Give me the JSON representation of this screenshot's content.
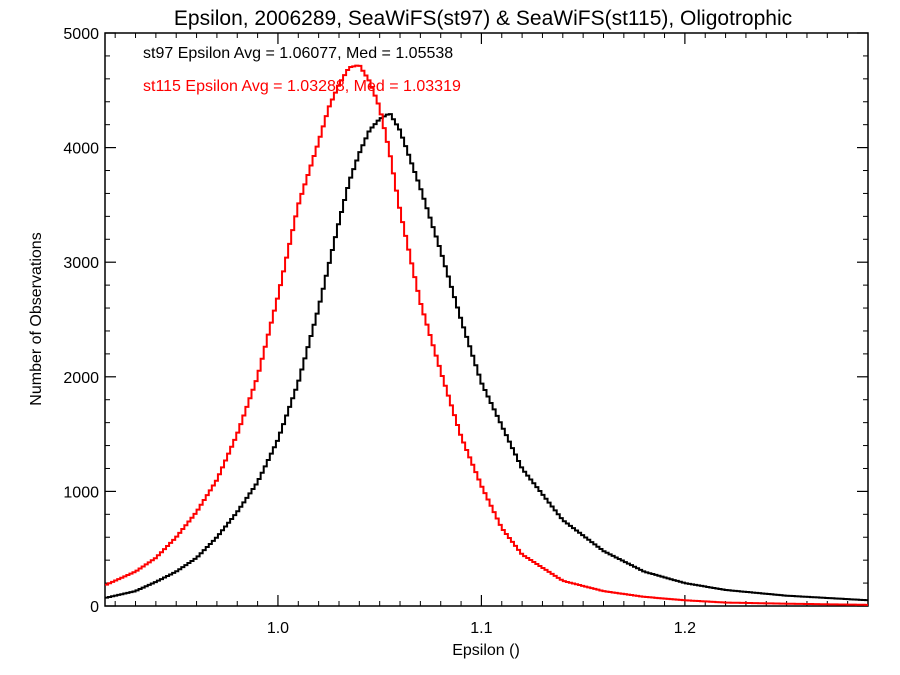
{
  "chart_data": {
    "type": "line",
    "title": "Epsilon, 2006289, SeaWiFS(st97) & SeaWiFS(st115), Oligotrophic",
    "xlabel": "Epsilon ()",
    "ylabel": "Number of Observations",
    "xlim": [
      0.915,
      1.29
    ],
    "ylim": [
      0,
      5000
    ],
    "x_ticks": [
      "1.0",
      "1.1",
      "1.2"
    ],
    "y_ticks": [
      "0",
      "1000",
      "2000",
      "3000",
      "4000",
      "5000"
    ],
    "grid": false,
    "line_style": "histogram-step",
    "annotations": [
      {
        "text": "st97 Epsilon Avg = 1.06077, Med = 1.05538",
        "color": "#000000"
      },
      {
        "text": "st115 Epsilon Avg = 1.03288, Med = 1.03319",
        "color": "#ff0000"
      }
    ],
    "series": [
      {
        "color": "#000000",
        "x": [
          0.915,
          0.93,
          0.94,
          0.95,
          0.96,
          0.97,
          0.98,
          0.99,
          1.0,
          1.01,
          1.02,
          1.03,
          1.035,
          1.04,
          1.045,
          1.05,
          1.055,
          1.06,
          1.07,
          1.08,
          1.09,
          1.1,
          1.12,
          1.14,
          1.16,
          1.18,
          1.2,
          1.22,
          1.25,
          1.29
        ],
        "values": [
          70,
          130,
          210,
          300,
          420,
          600,
          820,
          1080,
          1450,
          1950,
          2600,
          3350,
          3700,
          3950,
          4150,
          4250,
          4300,
          4150,
          3650,
          3100,
          2500,
          1950,
          1200,
          750,
          480,
          300,
          200,
          140,
          90,
          50
        ]
      },
      {
        "color": "#ff0000",
        "x": [
          0.915,
          0.93,
          0.94,
          0.95,
          0.96,
          0.97,
          0.98,
          0.99,
          1.0,
          1.005,
          1.01,
          1.02,
          1.025,
          1.03,
          1.035,
          1.04,
          1.045,
          1.05,
          1.055,
          1.06,
          1.07,
          1.08,
          1.09,
          1.1,
          1.11,
          1.12,
          1.14,
          1.16,
          1.18,
          1.2,
          1.22,
          1.25,
          1.29
        ],
        "values": [
          180,
          300,
          420,
          600,
          820,
          1100,
          1500,
          2000,
          2700,
          3100,
          3500,
          4050,
          4350,
          4550,
          4700,
          4720,
          4580,
          4350,
          3950,
          3450,
          2650,
          2050,
          1480,
          1050,
          680,
          450,
          220,
          130,
          80,
          50,
          30,
          20,
          10
        ]
      }
    ]
  }
}
